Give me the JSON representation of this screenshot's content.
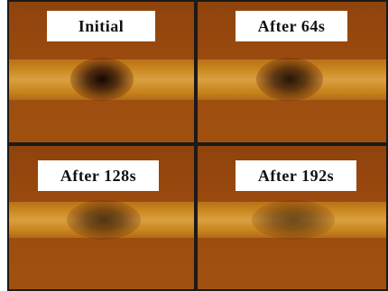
{
  "colors": {
    "background": "#9b4a0f",
    "band": "#c8841c",
    "divider": "#1c1a18",
    "label_bg": "#ffffff",
    "spot": "#1a0a05"
  },
  "panels": [
    {
      "label": "Initial",
      "spot_intensity": 1.0
    },
    {
      "label": "After 64s",
      "spot_intensity": 0.9
    },
    {
      "label": "After 128s",
      "spot_intensity": 0.7
    },
    {
      "label": "After 192s",
      "spot_intensity": 0.55
    }
  ]
}
